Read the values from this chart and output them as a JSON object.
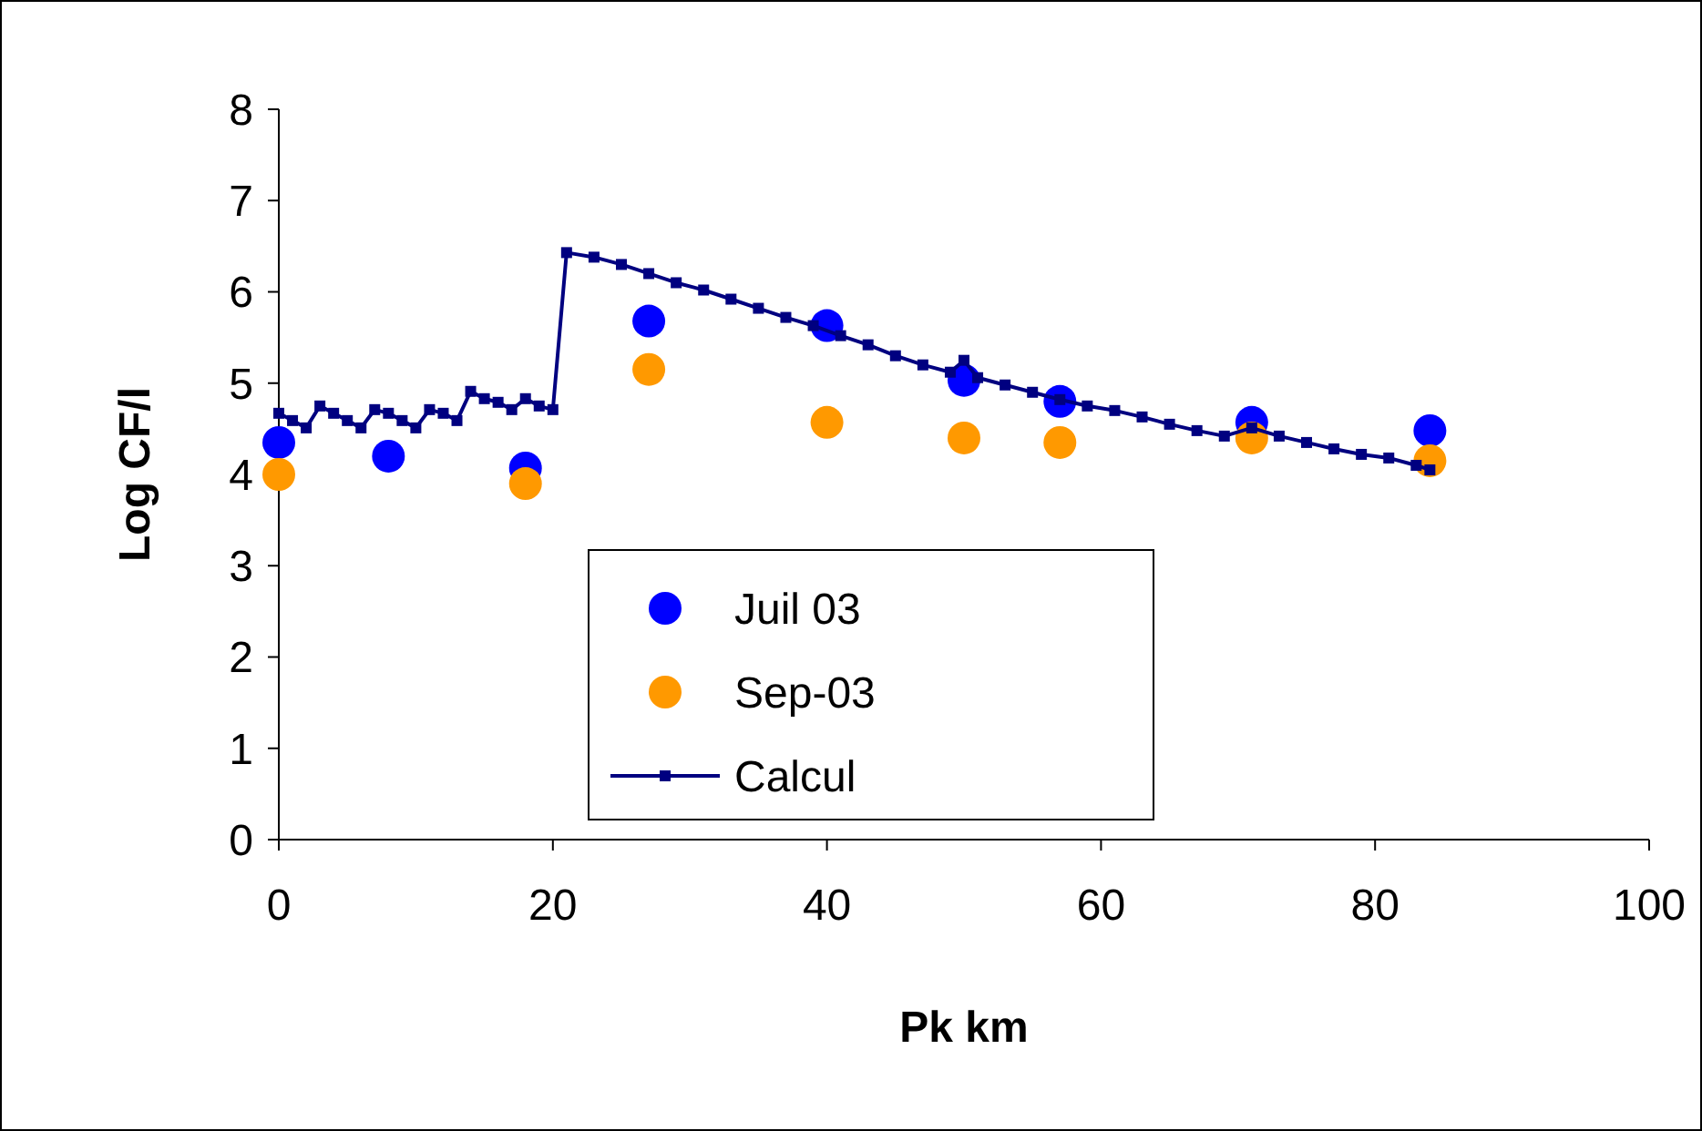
{
  "chart_data": {
    "type": "scatter",
    "xlabel": "Pk km",
    "ylabel": "Log CF/l",
    "xlim": [
      0,
      100
    ],
    "xticks": [
      0,
      20,
      40,
      60,
      80,
      100
    ],
    "ylim": [
      0,
      8
    ],
    "yticks": [
      0,
      1,
      2,
      3,
      4,
      5,
      6,
      7,
      8
    ],
    "grid": false,
    "legend": "bottom",
    "series": [
      {
        "name": "Juil 03",
        "color": "#0000ff",
        "marker": "circle",
        "x": [
          0,
          8,
          18,
          27,
          40,
          50,
          57,
          71,
          84
        ],
        "values": [
          4.35,
          4.2,
          4.07,
          5.68,
          5.63,
          5.03,
          4.8,
          4.57,
          4.48
        ]
      },
      {
        "name": "Sep-03",
        "color": "#ff9900",
        "marker": "circle",
        "x": [
          0,
          18,
          27,
          40,
          50,
          57,
          71,
          84
        ],
        "values": [
          4.0,
          3.9,
          5.15,
          4.57,
          4.4,
          4.35,
          4.4,
          4.15
        ]
      },
      {
        "name": "Calcul",
        "type": "line",
        "color": "#000080",
        "marker": "square",
        "line_style": "solid",
        "x": [
          0,
          1,
          2,
          3,
          4,
          5,
          6,
          7,
          8,
          9,
          10,
          11,
          12,
          13,
          14,
          15,
          16,
          17,
          18,
          19,
          20,
          21,
          23,
          25,
          27,
          29,
          31,
          33,
          35,
          37,
          39,
          41,
          43,
          45,
          47,
          49,
          50,
          51,
          53,
          55,
          57,
          59,
          61,
          63,
          65,
          67,
          69,
          71,
          73,
          75,
          77,
          79,
          81,
          83,
          84
        ],
        "values": [
          4.67,
          4.59,
          4.51,
          4.75,
          4.67,
          4.59,
          4.51,
          4.71,
          4.67,
          4.59,
          4.51,
          4.71,
          4.67,
          4.59,
          4.91,
          4.83,
          4.79,
          4.71,
          4.83,
          4.75,
          4.71,
          6.43,
          6.38,
          6.3,
          6.2,
          6.1,
          6.02,
          5.92,
          5.82,
          5.72,
          5.63,
          5.52,
          5.42,
          5.3,
          5.2,
          5.12,
          5.25,
          5.06,
          4.98,
          4.9,
          4.82,
          4.75,
          4.7,
          4.63,
          4.55,
          4.48,
          4.42,
          4.51,
          4.42,
          4.35,
          4.28,
          4.22,
          4.18,
          4.1,
          4.05
        ]
      }
    ]
  }
}
